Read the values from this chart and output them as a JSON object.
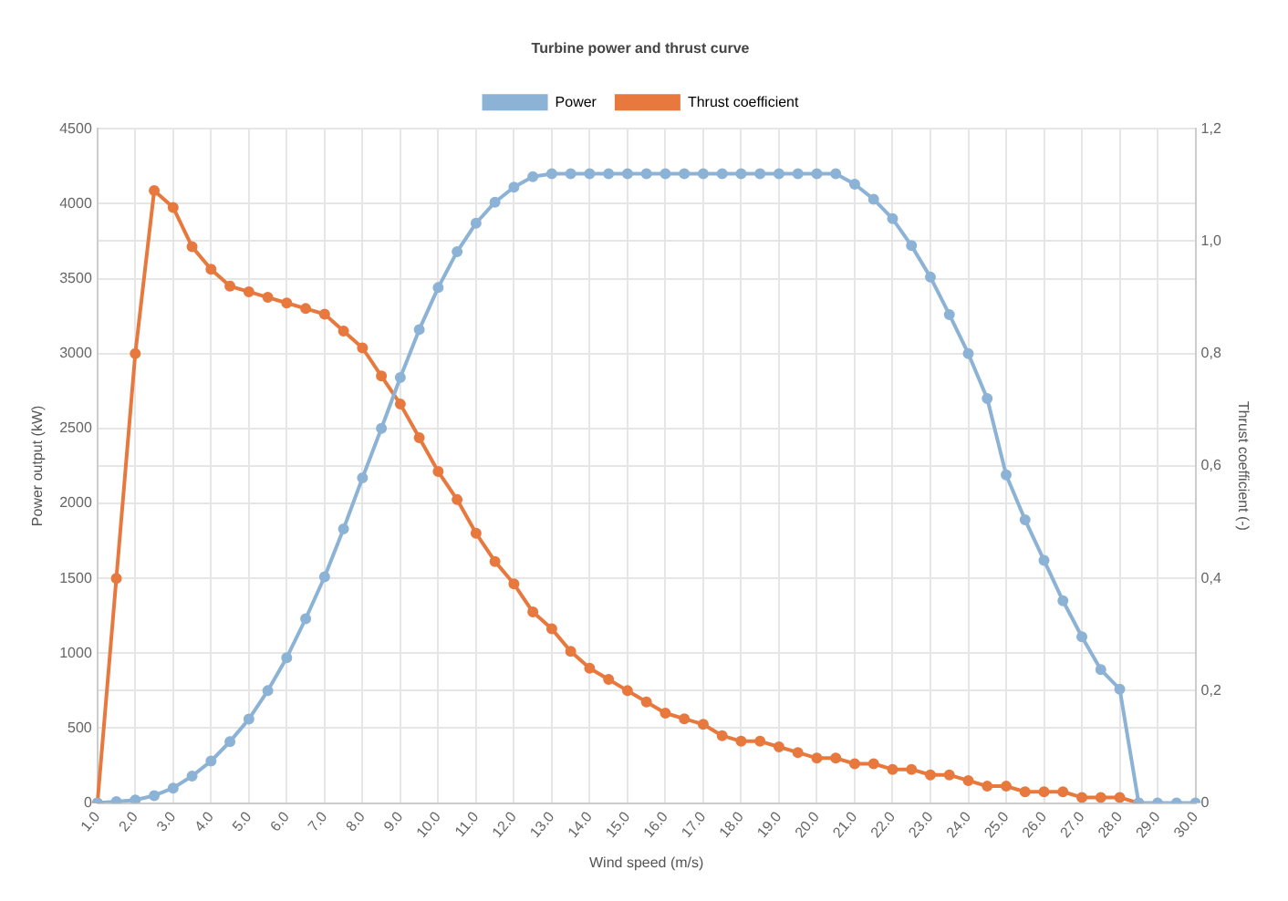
{
  "chart_data": {
    "type": "line",
    "title": "Turbine power and thrust curve",
    "xlabel": "Wind speed (m/s)",
    "ylabel": "Power output (kW)",
    "y2label": "Thrust coefficient (-)",
    "categories": [
      "1.0",
      null,
      "2.0",
      null,
      "3.0",
      null,
      "4.0",
      null,
      "5.0",
      null,
      "6.0",
      null,
      "7.0",
      null,
      "8.0",
      null,
      "9.0",
      null,
      "10.0",
      null,
      "11.0",
      null,
      "12.0",
      null,
      "13.0",
      null,
      "14.0",
      null,
      "15.0",
      null,
      "16.0",
      null,
      "17.0",
      null,
      "18.0",
      null,
      "19.0",
      null,
      "20.0",
      null,
      "21.0",
      null,
      "22.0",
      null,
      "23.0",
      null,
      "24.0",
      null,
      "25.0",
      null,
      "26.0",
      null,
      "27.0",
      null,
      "28.0",
      null,
      "29.0",
      null,
      "30.0"
    ],
    "series": [
      {
        "name": "Power",
        "color": "#8cb3d6",
        "values": [
          0,
          10,
          20,
          50,
          100,
          180,
          280,
          410,
          560,
          750,
          970,
          1230,
          1510,
          1830,
          2170,
          2500,
          2840,
          3160,
          3440,
          3680,
          3870,
          4010,
          4110,
          4180,
          4200,
          4200,
          4200,
          4200,
          4200,
          4200,
          4200,
          4200,
          4200,
          4200,
          4200,
          4200,
          4200,
          4200,
          4200,
          4200,
          4130,
          4030,
          3900,
          3720,
          3510,
          3260,
          3000,
          2700,
          2190,
          1890,
          1620,
          1350,
          1110,
          890,
          760,
          0,
          0,
          0,
          0
        ]
      },
      {
        "name": "Thrust coefficient",
        "color": "#e8793e",
        "axis": "y2",
        "values": [
          0,
          0.4,
          0.8,
          1.09,
          1.06,
          0.99,
          0.95,
          0.92,
          0.91,
          0.9,
          0.89,
          0.88,
          0.87,
          0.84,
          0.81,
          0.76,
          0.71,
          0.65,
          0.59,
          0.54,
          0.48,
          0.43,
          0.39,
          0.34,
          0.31,
          0.27,
          0.24,
          0.22,
          0.2,
          0.18,
          0.16,
          0.15,
          0.14,
          0.12,
          0.11,
          0.11,
          0.1,
          0.09,
          0.08,
          0.08,
          0.07,
          0.07,
          0.06,
          0.06,
          0.05,
          0.05,
          0.04,
          0.03,
          0.03,
          0.02,
          0.02,
          0.02,
          0.01,
          0.01,
          0.01,
          0,
          null,
          null,
          null
        ]
      }
    ],
    "ylim": [
      0,
      4500
    ],
    "yticks": [
      0,
      500,
      1000,
      1500,
      2000,
      2500,
      3000,
      3500,
      4000,
      4500
    ],
    "y2lim": [
      0,
      1.2
    ],
    "y2ticks": [
      0,
      {
        "value": 0.2,
        "label": "0,2"
      },
      {
        "value": 0.4,
        "label": "0,4"
      },
      {
        "value": 0.6,
        "label": "0,6"
      },
      {
        "value": 0.8,
        "label": "0,8"
      },
      {
        "value": 1,
        "label": "1,0"
      },
      {
        "value": 1.2,
        "label": "1,2"
      }
    ],
    "grid": true,
    "legend": "top",
    "marker": "circle",
    "line_style": "solid"
  }
}
